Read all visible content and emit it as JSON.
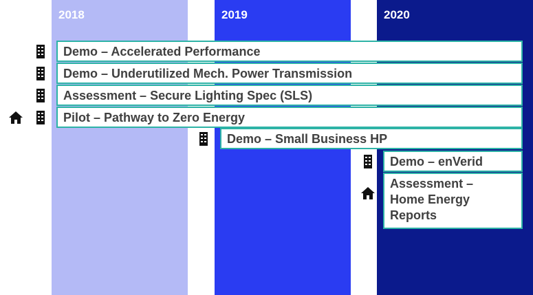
{
  "columns": [
    {
      "year": "2018"
    },
    {
      "year": "2019"
    },
    {
      "year": "2020"
    }
  ],
  "items": [
    {
      "label": "Demo – Accelerated Performance"
    },
    {
      "label": "Demo – Underutilized Mech. Power Transmission"
    },
    {
      "label": "Assessment – Secure Lighting Spec (SLS)"
    },
    {
      "label": "Pilot – Pathway to Zero Energy"
    },
    {
      "label": "Demo – Small Business HP"
    },
    {
      "label": "Demo – enVerid"
    },
    {
      "label": "Assessment – Home Energy Reports"
    }
  ]
}
